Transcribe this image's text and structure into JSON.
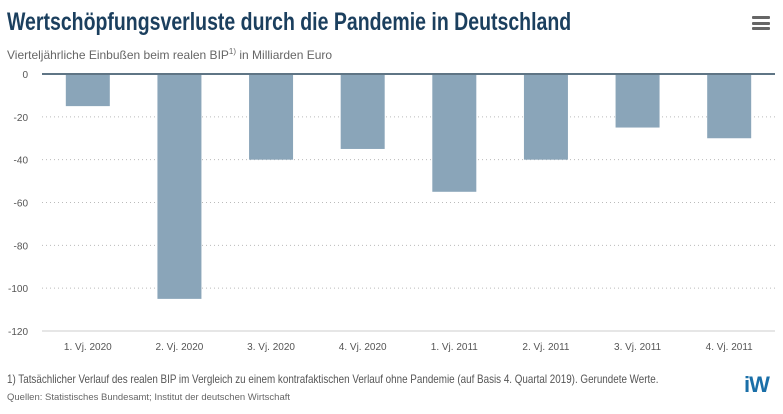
{
  "menu_icon": "hamburger-menu-icon",
  "footnote": "1) Tatsächlicher Verlauf des realen BIP im Vergleich zu einem kontrafaktischen Verlauf ohne Pandemie (auf Basis 4. Quartal 2019). Gerundete Werte.",
  "source": "Quellen: Statistisches Bundesamt; Institut der deutschen Wirtschaft",
  "logo": "iW",
  "chart_data": {
    "type": "bar",
    "title": "Wertschöpfungsverluste durch die Pandemie in Deutschland",
    "subtitle": "Vierteljährliche Einbußen beim realen BIP",
    "subtitle_sup": "1)",
    "subtitle_end": " in Milliarden Euro",
    "categories": [
      "1. Vj. 2020",
      "2. Vj. 2020",
      "3. Vj. 2020",
      "4. Vj. 2020",
      "1. Vj. 2011",
      "2. Vj. 2011",
      "3. Vj. 2011",
      "4. Vj. 2011"
    ],
    "values": [
      -15,
      -105,
      -40,
      -35,
      -55,
      -40,
      -25,
      -30
    ],
    "ylim": [
      -120,
      0
    ],
    "yticks": [
      "0",
      "-20",
      "-40",
      "-60",
      "-80",
      "-100",
      "-120"
    ],
    "grid": true,
    "bar_color": "#8aa5b9",
    "title_color": "#1b3f5e"
  }
}
